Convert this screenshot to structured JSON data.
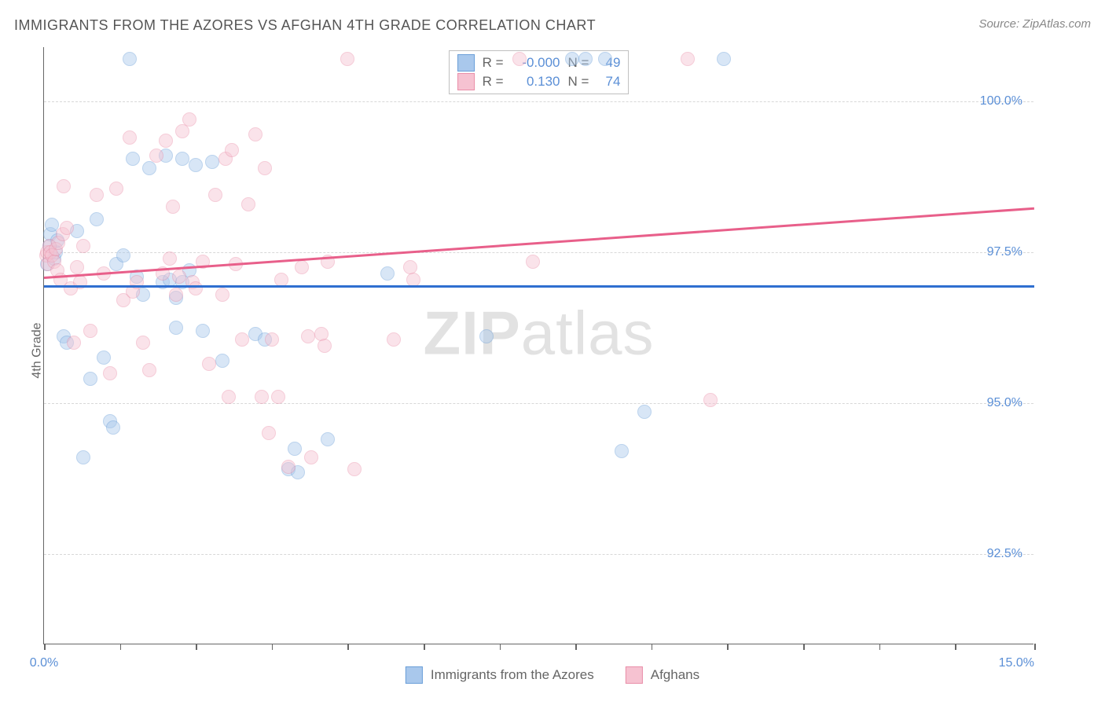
{
  "title": "IMMIGRANTS FROM THE AZORES VS AFGHAN 4TH GRADE CORRELATION CHART",
  "source": "Source: ZipAtlas.com",
  "ylabel": "4th Grade",
  "watermark_bold": "ZIP",
  "watermark_rest": "atlas",
  "chart": {
    "type": "scatter",
    "background_color": "#ffffff",
    "grid_color": "#d8d8d8",
    "axis_color": "#666666",
    "xlim": [
      0,
      15
    ],
    "ylim": [
      91.0,
      100.9
    ],
    "x_ticks": [
      0,
      1.15,
      2.3,
      3.45,
      4.6,
      5.75,
      6.9,
      8.05,
      9.2,
      10.35,
      11.5,
      12.65,
      13.8,
      15
    ],
    "x_tick_labels": {
      "0": "0.0%",
      "15": "15.0%"
    },
    "y_gridlines": [
      92.5,
      95.0,
      97.5,
      100.0
    ],
    "y_tick_labels": [
      "92.5%",
      "95.0%",
      "97.5%",
      "100.0%"
    ],
    "tick_label_color": "#5b8fd6",
    "label_fontsize": 16,
    "title_fontsize": 18,
    "marker_radius": 9,
    "marker_opacity": 0.45,
    "marker_border_width": 1.5
  },
  "series": [
    {
      "name": "Immigrants from the Azores",
      "fill_color": "#a9c8ec",
      "stroke_color": "#6b9fd8",
      "r_label": "R =",
      "r_value": "-0.000",
      "n_label": "N =",
      "n_value": "49",
      "trend": {
        "y_at_x0": 96.95,
        "y_at_x15": 96.95,
        "color": "#2f6fd0",
        "width": 2.5
      },
      "points": [
        [
          0.05,
          97.3
        ],
        [
          0.08,
          97.6
        ],
        [
          0.1,
          97.8
        ],
        [
          0.12,
          97.95
        ],
        [
          0.15,
          97.4
        ],
        [
          0.18,
          97.5
        ],
        [
          0.2,
          97.7
        ],
        [
          0.3,
          96.1
        ],
        [
          0.35,
          96.0
        ],
        [
          0.5,
          97.85
        ],
        [
          0.6,
          94.1
        ],
        [
          0.7,
          95.4
        ],
        [
          0.8,
          98.05
        ],
        [
          0.9,
          95.75
        ],
        [
          1.0,
          94.7
        ],
        [
          1.05,
          94.6
        ],
        [
          1.1,
          97.3
        ],
        [
          1.2,
          97.45
        ],
        [
          1.3,
          100.7
        ],
        [
          1.35,
          99.05
        ],
        [
          1.4,
          97.1
        ],
        [
          1.5,
          96.8
        ],
        [
          1.6,
          98.9
        ],
        [
          1.8,
          97.0
        ],
        [
          1.85,
          99.1
        ],
        [
          1.9,
          97.05
        ],
        [
          2.0,
          96.75
        ],
        [
          2.0,
          96.25
        ],
        [
          2.1,
          99.05
        ],
        [
          2.1,
          97.0
        ],
        [
          2.2,
          97.2
        ],
        [
          2.3,
          98.95
        ],
        [
          2.4,
          96.2
        ],
        [
          2.55,
          99.0
        ],
        [
          2.7,
          95.7
        ],
        [
          3.2,
          96.15
        ],
        [
          3.35,
          96.05
        ],
        [
          3.7,
          93.9
        ],
        [
          3.8,
          94.25
        ],
        [
          3.85,
          93.85
        ],
        [
          4.3,
          94.4
        ],
        [
          5.2,
          97.15
        ],
        [
          6.7,
          96.1
        ],
        [
          8.2,
          100.7
        ],
        [
          8.5,
          100.7
        ],
        [
          8.75,
          94.2
        ],
        [
          9.1,
          94.85
        ],
        [
          10.3,
          100.7
        ],
        [
          8.0,
          100.7
        ]
      ]
    },
    {
      "name": "Afghans",
      "fill_color": "#f6c2d1",
      "stroke_color": "#e98fa9",
      "r_label": "R =",
      "r_value": "0.130",
      "n_label": "N =",
      "n_value": "74",
      "trend": {
        "y_at_x0": 97.1,
        "y_at_x15": 98.25,
        "color": "#e85f8a",
        "width": 2.5
      },
      "points": [
        [
          0.03,
          97.45
        ],
        [
          0.05,
          97.5
        ],
        [
          0.06,
          97.3
        ],
        [
          0.08,
          97.6
        ],
        [
          0.1,
          97.5
        ],
        [
          0.12,
          97.45
        ],
        [
          0.15,
          97.35
        ],
        [
          0.18,
          97.55
        ],
        [
          0.2,
          97.2
        ],
        [
          0.22,
          97.65
        ],
        [
          0.25,
          97.05
        ],
        [
          0.28,
          97.8
        ],
        [
          0.3,
          98.6
        ],
        [
          0.35,
          97.9
        ],
        [
          0.4,
          96.9
        ],
        [
          0.45,
          96.0
        ],
        [
          0.5,
          97.25
        ],
        [
          0.55,
          97.0
        ],
        [
          0.6,
          97.6
        ],
        [
          0.7,
          96.2
        ],
        [
          0.8,
          98.45
        ],
        [
          0.9,
          97.15
        ],
        [
          1.0,
          95.5
        ],
        [
          1.1,
          98.55
        ],
        [
          1.2,
          96.7
        ],
        [
          1.3,
          99.4
        ],
        [
          1.35,
          96.85
        ],
        [
          1.4,
          97.0
        ],
        [
          1.5,
          96.0
        ],
        [
          1.6,
          95.55
        ],
        [
          1.7,
          99.1
        ],
        [
          1.8,
          97.15
        ],
        [
          1.85,
          99.35
        ],
        [
          1.9,
          97.4
        ],
        [
          1.95,
          98.25
        ],
        [
          2.0,
          96.8
        ],
        [
          2.05,
          97.1
        ],
        [
          2.1,
          99.5
        ],
        [
          2.2,
          99.7
        ],
        [
          2.25,
          97.0
        ],
        [
          2.3,
          96.9
        ],
        [
          2.4,
          97.35
        ],
        [
          2.5,
          95.65
        ],
        [
          2.6,
          98.45
        ],
        [
          2.7,
          96.8
        ],
        [
          2.75,
          99.05
        ],
        [
          2.8,
          95.1
        ],
        [
          2.85,
          99.2
        ],
        [
          2.9,
          97.3
        ],
        [
          3.0,
          96.05
        ],
        [
          3.1,
          98.3
        ],
        [
          3.2,
          99.45
        ],
        [
          3.3,
          95.1
        ],
        [
          3.35,
          98.9
        ],
        [
          3.4,
          94.5
        ],
        [
          3.45,
          96.05
        ],
        [
          3.55,
          95.1
        ],
        [
          3.6,
          97.05
        ],
        [
          3.7,
          93.95
        ],
        [
          3.9,
          97.25
        ],
        [
          4.0,
          96.1
        ],
        [
          4.05,
          94.1
        ],
        [
          4.2,
          96.15
        ],
        [
          4.25,
          95.95
        ],
        [
          4.3,
          97.35
        ],
        [
          4.6,
          100.7
        ],
        [
          5.3,
          96.05
        ],
        [
          5.55,
          97.25
        ],
        [
          5.6,
          97.05
        ],
        [
          7.2,
          100.7
        ],
        [
          7.4,
          97.35
        ],
        [
          9.75,
          100.7
        ],
        [
          10.1,
          95.05
        ],
        [
          4.7,
          93.9
        ]
      ]
    }
  ],
  "bottom_legend": [
    {
      "label": "Immigrants from the Azores",
      "fill": "#a9c8ec",
      "stroke": "#6b9fd8"
    },
    {
      "label": "Afghans",
      "fill": "#f6c2d1",
      "stroke": "#e98fa9"
    }
  ]
}
